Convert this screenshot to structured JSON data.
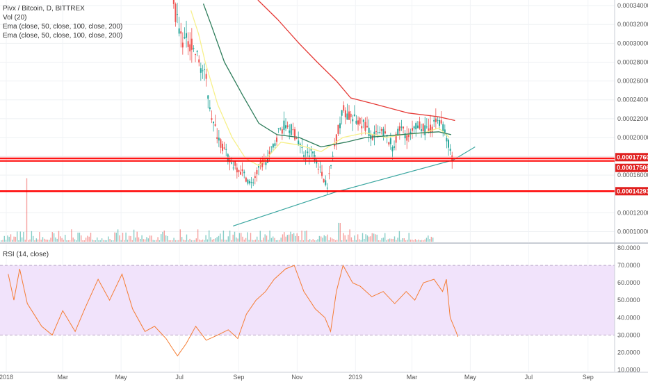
{
  "header": {
    "symbol": "Pivx / Bitcoin, D, BITTREX",
    "volume": "Vol (20)",
    "ema_a": "Ema (close, 50, close, 100, close, 200)",
    "ema_b": "Ema (close, 50, close, 100, close, 200)"
  },
  "rsi_header": "RSI (14, close)",
  "colors": {
    "up": "#26a69a",
    "down": "#ef5350",
    "ema50": "#f7f08a",
    "ema100": "#2e7d5b",
    "ema200": "#e53935",
    "level": "#ff0000",
    "trend": "#3aa6a0",
    "rsi": "#f57c32",
    "rsi_band": "#f1e3fb"
  },
  "chart_data": [
    {
      "type": "candlestick",
      "title": "Pivx / Bitcoin, D, BITTREX",
      "x_labels": [
        "2018",
        "Mar",
        "May",
        "Jul",
        "Sep",
        "Nov",
        "2019",
        "Mar",
        "May",
        "Jul",
        "Sep"
      ],
      "y_tick_labels": [
        "0.00034000",
        "0.00032000",
        "0.00030000",
        "0.00028000",
        "0.00026000",
        "0.00024000",
        "0.00022000",
        "0.00020000",
        "0.00018000",
        "0.00016000",
        "0.00012000",
        "0.00010000"
      ],
      "ylim": [
        8.93e-05,
        0.000346
      ],
      "price_labels": [
        "0.00017760",
        "0.00017506",
        "0.00014293"
      ],
      "series": [
        {
          "name": "Close",
          "points": [
            [
              "2018-06-25",
              0.00034
            ],
            [
              "2018-07-03",
              0.000305
            ],
            [
              "2018-07-12",
              0.0003
            ],
            [
              "2018-07-20",
              0.000285
            ],
            [
              "2018-07-29",
              0.00026
            ],
            [
              "2018-08-05",
              0.000215
            ],
            [
              "2018-08-13",
              0.000195
            ],
            [
              "2018-08-22",
              0.000175
            ],
            [
              "2018-08-30",
              0.000168
            ],
            [
              "2018-09-07",
              0.00016
            ],
            [
              "2018-09-14",
              0.00015
            ],
            [
              "2018-09-24",
              0.00017
            ],
            [
              "2018-10-03",
              0.00018
            ],
            [
              "2018-10-12",
              0.000205
            ],
            [
              "2018-10-21",
              0.000215
            ],
            [
              "2018-11-01",
              0.0002
            ],
            [
              "2018-11-09",
              0.00018
            ],
            [
              "2018-11-18",
              0.000185
            ],
            [
              "2018-11-27",
              0.00016
            ],
            [
              "2018-12-03",
              0.00015
            ],
            [
              "2018-12-10",
              0.00019
            ],
            [
              "2018-12-19",
              0.00023
            ],
            [
              "2018-12-27",
              0.00022
            ],
            [
              "2019-01-09",
              0.000215
            ],
            [
              "2019-01-19",
              0.0002
            ],
            [
              "2019-01-30",
              0.000205
            ],
            [
              "2019-02-09",
              0.00019
            ],
            [
              "2019-02-17",
              0.00021
            ],
            [
              "2019-02-26",
              0.0002
            ],
            [
              "2019-03-09",
              0.000215
            ],
            [
              "2019-03-17",
              0.000205
            ],
            [
              "2019-03-29",
              0.00022
            ],
            [
              "2019-04-05",
              0.000205
            ],
            [
              "2019-04-12",
              0.00018
            ]
          ]
        },
        {
          "name": "EMA 50",
          "points": [
            [
              "2018-07-13",
              0.000335
            ],
            [
              "2018-07-21",
              0.00031
            ],
            [
              "2018-07-28",
              0.00028
            ],
            [
              "2018-08-10",
              0.000235
            ],
            [
              "2018-08-25",
              0.0002
            ],
            [
              "2018-09-08",
              0.000178
            ],
            [
              "2018-09-22",
              0.00017
            ],
            [
              "2018-10-02",
              0.00018
            ],
            [
              "2018-10-15",
              0.000195
            ],
            [
              "2018-11-03",
              0.000192
            ],
            [
              "2018-11-26",
              0.000185
            ],
            [
              "2018-12-19",
              0.0002
            ],
            [
              "2019-01-11",
              0.000205
            ],
            [
              "2019-02-02",
              0.0002
            ],
            [
              "2019-02-20",
              0.000203
            ],
            [
              "2019-03-14",
              0.000205
            ],
            [
              "2019-03-29",
              0.00021
            ],
            [
              "2019-04-09",
              0.0002
            ]
          ]
        },
        {
          "name": "EMA 100",
          "points": [
            [
              "2018-07-26",
              0.000342
            ],
            [
              "2018-08-03",
              0.00032
            ],
            [
              "2018-08-17",
              0.00028
            ],
            [
              "2018-09-05",
              0.000245
            ],
            [
              "2018-09-22",
              0.000215
            ],
            [
              "2018-10-11",
              0.000203
            ],
            [
              "2018-11-03",
              0.0002
            ],
            [
              "2018-11-26",
              0.00019
            ],
            [
              "2018-12-22",
              0.000195
            ],
            [
              "2019-01-12",
              0.0002
            ],
            [
              "2019-02-07",
              0.000202
            ],
            [
              "2019-03-12",
              0.000205
            ],
            [
              "2019-03-29",
              0.000206
            ],
            [
              "2019-04-11",
              0.000203
            ]
          ]
        },
        {
          "name": "EMA 200",
          "points": [
            [
              "2018-09-21",
              0.000346
            ],
            [
              "2018-10-12",
              0.000325
            ],
            [
              "2018-11-03",
              0.0003
            ],
            [
              "2018-11-22",
              0.00028
            ],
            [
              "2018-12-12",
              0.00026
            ],
            [
              "2018-12-27",
              0.000242
            ],
            [
              "2019-01-19",
              0.000236
            ],
            [
              "2019-02-25",
              0.000226
            ],
            [
              "2019-03-29",
              0.000222
            ],
            [
              "2019-04-15",
              0.000218
            ]
          ]
        },
        {
          "name": "Trend line",
          "points": [
            [
              "2018-08-26",
              0.000106
            ],
            [
              "2018-12-11",
              0.000142
            ],
            [
              "2019-04-13",
              0.000176
            ],
            [
              "2019-05-06",
              0.00019
            ]
          ]
        },
        {
          "name": "RSI",
          "points": [
            [
              "2018-01-03",
              65.0
            ],
            [
              "2018-01-09",
              50.0
            ],
            [
              "2018-01-15",
              68.0
            ],
            [
              "2018-01-23",
              48.0
            ],
            [
              "2018-01-30",
              42.0
            ],
            [
              "2018-02-07",
              35.0
            ],
            [
              "2018-02-18",
              30.0
            ],
            [
              "2018-03-01",
              44.0
            ],
            [
              "2018-03-14",
              32.0
            ],
            [
              "2018-03-24",
              45.0
            ],
            [
              "2018-04-07",
              62.0
            ],
            [
              "2018-04-19",
              50.0
            ],
            [
              "2018-05-02",
              65.0
            ],
            [
              "2018-05-13",
              45.0
            ],
            [
              "2018-05-26",
              32.0
            ],
            [
              "2018-06-05",
              35.0
            ],
            [
              "2018-06-17",
              28.0
            ],
            [
              "2018-06-24",
              22.0
            ],
            [
              "2018-06-29",
              18.0
            ],
            [
              "2018-07-08",
              25.0
            ],
            [
              "2018-07-18",
              35.0
            ],
            [
              "2018-07-29",
              27.0
            ],
            [
              "2018-08-10",
              30.0
            ],
            [
              "2018-08-21",
              33.0
            ],
            [
              "2018-08-31",
              28.0
            ],
            [
              "2018-09-09",
              42.0
            ],
            [
              "2018-09-19",
              50.0
            ],
            [
              "2018-09-29",
              55.0
            ],
            [
              "2018-10-08",
              62.0
            ],
            [
              "2018-10-20",
              68.0
            ],
            [
              "2018-10-29",
              70.0
            ],
            [
              "2018-11-08",
              55.0
            ],
            [
              "2018-11-20",
              45.0
            ],
            [
              "2018-11-30",
              40.0
            ],
            [
              "2018-12-06",
              32.0
            ],
            [
              "2018-12-12",
              55.0
            ],
            [
              "2018-12-19",
              70.0
            ],
            [
              "2018-12-29",
              60.0
            ],
            [
              "2019-01-06",
              58.0
            ],
            [
              "2019-01-18",
              52.0
            ],
            [
              "2019-01-30",
              55.0
            ],
            [
              "2019-02-11",
              48.0
            ],
            [
              "2019-02-23",
              55.0
            ],
            [
              "2019-03-04",
              50.0
            ],
            [
              "2019-03-13",
              60.0
            ],
            [
              "2019-03-24",
              62.0
            ],
            [
              "2019-04-02",
              55.0
            ],
            [
              "2019-04-06",
              62.0
            ],
            [
              "2019-04-10",
              40.0
            ],
            [
              "2019-04-16",
              32.0
            ],
            [
              "2019-04-18",
              29.0
            ]
          ]
        }
      ],
      "levels": [
        0.0001776,
        0.00017506,
        0.00014293
      ]
    },
    {
      "type": "line",
      "title": "RSI (14, close)",
      "ylim": [
        9.0,
        82.0
      ],
      "y_tick_labels": [
        "80.0000",
        "70.0000",
        "60.0000",
        "50.0000",
        "40.0000",
        "30.0000",
        "20.0000",
        "10.0000"
      ],
      "band": [
        30,
        70
      ]
    }
  ]
}
